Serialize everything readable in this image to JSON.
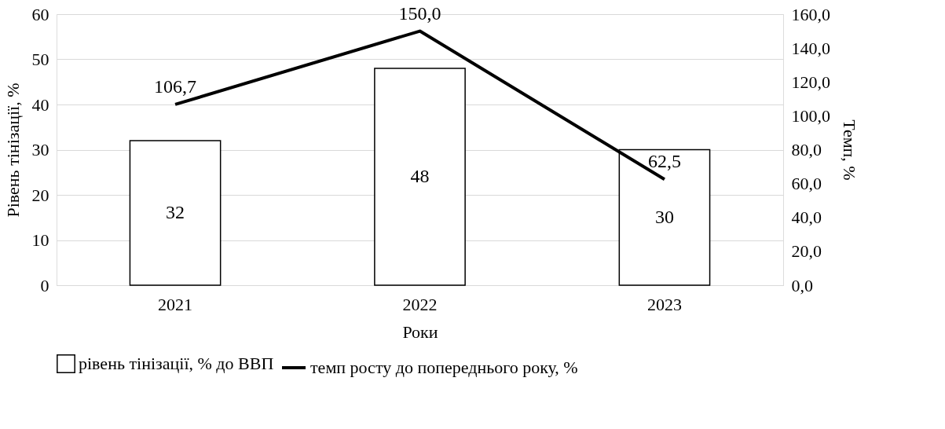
{
  "chart_data": {
    "type": "bar",
    "xlabel": "Роки",
    "ylabel": "Рівень тінізації, %",
    "y2label": "Темп, %",
    "categories": [
      "2021",
      "2022",
      "2023"
    ],
    "series": [
      {
        "name": "рівень тінізації, % до ВВП",
        "color": "#ffffff",
        "values": [
          32,
          48,
          30
        ],
        "value_labels": [
          "32",
          "48",
          "30"
        ]
      },
      {
        "name": "темп росту до попереднього року, %",
        "type": "line",
        "axis": "y2",
        "color": "#000000",
        "values": [
          106.7,
          150.0,
          62.5
        ],
        "value_labels": [
          "106,7",
          "150,0",
          "62,5"
        ]
      }
    ],
    "ylim": [
      0,
      60
    ],
    "yticks": [
      0,
      10,
      20,
      30,
      40,
      50,
      60
    ],
    "y2lim": [
      0,
      160
    ],
    "y2ticks": [
      {
        "value": 0,
        "label": "0,0"
      },
      {
        "value": 20,
        "label": "20,0"
      },
      {
        "value": 40,
        "label": "40,0"
      },
      {
        "value": 60,
        "label": "60,0"
      },
      {
        "value": 80,
        "label": "80,0"
      },
      {
        "value": 100,
        "label": "100,0"
      },
      {
        "value": 120,
        "label": "120,0"
      },
      {
        "value": 140,
        "label": "140,0"
      },
      {
        "value": 160,
        "label": "160,0"
      }
    ],
    "grid": "y",
    "legend": "bottom",
    "marker": "none",
    "line_style": "solid"
  }
}
